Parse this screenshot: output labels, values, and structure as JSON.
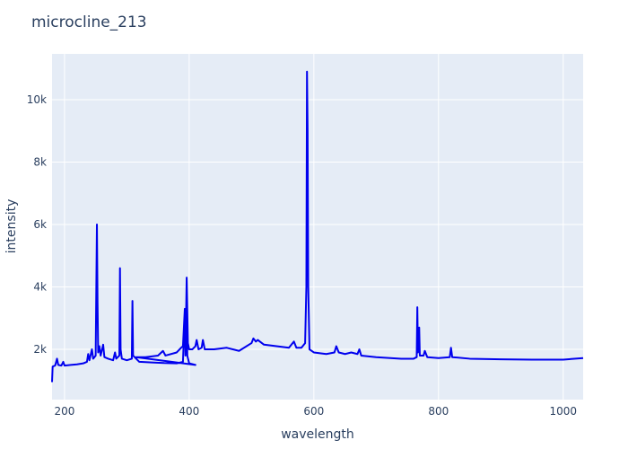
{
  "chart_data": {
    "type": "line",
    "title": "microcline_213",
    "x_label": "wavelength",
    "y_label": "intensity",
    "xlim": [
      180,
      1032
    ],
    "ylim": [
      389,
      11468
    ],
    "xticks": [
      200,
      400,
      600,
      800,
      1000
    ],
    "yticks": [
      {
        "value": 2000,
        "label": "2k"
      },
      {
        "value": 4000,
        "label": "4k"
      },
      {
        "value": 6000,
        "label": "6k"
      },
      {
        "value": 8000,
        "label": "8k"
      },
      {
        "value": 10000,
        "label": "10k"
      }
    ],
    "grid": true,
    "series": [
      {
        "color": "#0000ee",
        "x": [
          180,
          181,
          185,
          188,
          190,
          195,
          198,
          200,
          210,
          220,
          230,
          236,
          238,
          240,
          244,
          246,
          250,
          252,
          253,
          254,
          256,
          258,
          262,
          264,
          270,
          278,
          281,
          283,
          288,
          289,
          290,
          292,
          300,
          308,
          309,
          310,
          315,
          320,
          340,
          360,
          380,
          390,
          393,
          394,
          396,
          397,
          400,
          410,
          315,
          330,
          350,
          358,
          362,
          380,
          387,
          390,
          393,
          395,
          396,
          398,
          400,
          405,
          410,
          412,
          415,
          420,
          422,
          425,
          440,
          460,
          480,
          500,
          503,
          507,
          510,
          520,
          540,
          560,
          568,
          572,
          580,
          586,
          588,
          589,
          590,
          591,
          593,
          600,
          620,
          633,
          636,
          640,
          650,
          660,
          670,
          673,
          676,
          700,
          740,
          760,
          765,
          766,
          767,
          769,
          770,
          776,
          778,
          782,
          800,
          818,
          820,
          822,
          850,
          900,
          950,
          1000,
          1032
        ],
        "values": [
          950,
          1450,
          1480,
          1700,
          1500,
          1480,
          1600,
          1480,
          1500,
          1520,
          1550,
          1600,
          1850,
          1650,
          2000,
          1700,
          1800,
          6000,
          3500,
          1900,
          2100,
          1800,
          2150,
          1750,
          1700,
          1650,
          1900,
          1700,
          1800,
          4600,
          2000,
          1700,
          1650,
          1700,
          3550,
          1800,
          1700,
          1600,
          1580,
          1560,
          1550,
          1600,
          3200,
          1800,
          4300,
          1800,
          1550,
          1500,
          1750,
          1750,
          1800,
          1950,
          1800,
          1900,
          2050,
          2100,
          3300,
          2200,
          4300,
          2200,
          2000,
          2000,
          2100,
          2300,
          2000,
          2050,
          2300,
          2000,
          2000,
          2050,
          1950,
          2200,
          2350,
          2250,
          2300,
          2150,
          2100,
          2050,
          2250,
          2050,
          2050,
          2200,
          4000,
          10900,
          9000,
          4000,
          2000,
          1900,
          1850,
          1900,
          2100,
          1900,
          1850,
          1900,
          1850,
          2000,
          1800,
          1750,
          1700,
          1700,
          1750,
          3350,
          1900,
          2700,
          1800,
          1800,
          1950,
          1750,
          1720,
          1750,
          2050,
          1750,
          1700,
          1680,
          1670,
          1670,
          1720
        ]
      }
    ]
  }
}
